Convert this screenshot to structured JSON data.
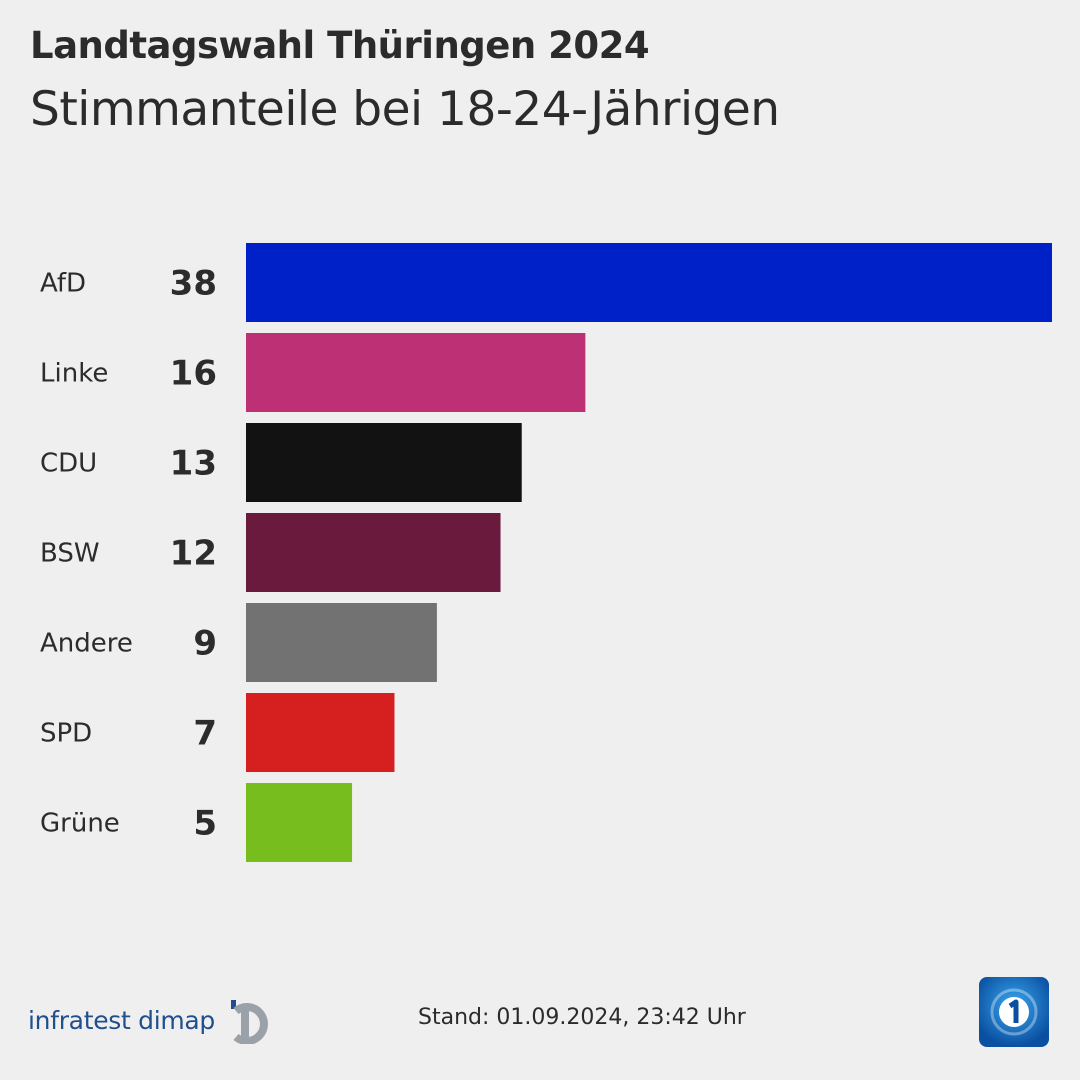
{
  "header": {
    "title": "Landtagswahl Thüringen 2024",
    "subtitle": "Stimmanteile bei 18-24-Jährigen"
  },
  "chart_data": {
    "type": "bar",
    "orientation": "horizontal",
    "title": "Landtagswahl Thüringen 2024",
    "subtitle": "Stimmanteile bei 18-24-Jährigen",
    "categories": [
      "AfD",
      "Linke",
      "CDU",
      "BSW",
      "Andere",
      "SPD",
      "Grüne"
    ],
    "values": [
      38,
      16,
      13,
      12,
      9,
      7,
      5
    ],
    "colors": [
      "#0021c8",
      "#be3075",
      "#121212",
      "#6a1a3d",
      "#727273",
      "#d5201f",
      "#78bd1e"
    ],
    "xlim": [
      0,
      38
    ],
    "grid": false,
    "legend": "none"
  },
  "footer": {
    "brand": "infratest dimap",
    "stand": "Stand:  01.09.2024, 23:42 Uhr"
  },
  "colors": {
    "background": "#f0eff0",
    "brand_blue": "#1f4f8c",
    "logo_gray": "#9aa1a8",
    "tv_blue": "#0a4fa0"
  }
}
